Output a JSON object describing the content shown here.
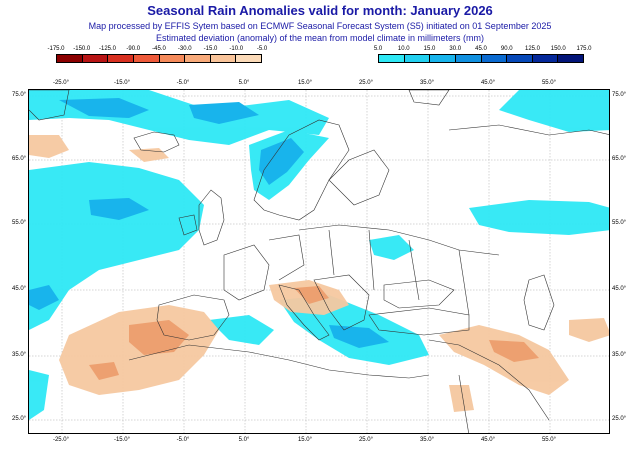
{
  "header": {
    "title": "Seasonal Rain Anomalies valid for month: January 2026",
    "subtitle_line1": "Map processed by EFFIS Sytem based on ECMWF Seasonal Forecast System (S5) initiated on 01 September 2025",
    "subtitle_line2": "Estimated deviation (anomaly) of the mean from model climate in millimeters (mm)"
  },
  "legend_dry": {
    "labels": [
      "-175.0",
      "-150.0",
      "-125.0",
      "-90.0",
      "-45.0",
      "-30.0",
      "-15.0",
      "-10.0",
      "-5.0"
    ],
    "colors": [
      "#8b0000",
      "#b81414",
      "#d83020",
      "#ee5a3a",
      "#f58a5a",
      "#f8aa7a",
      "#f9c49a",
      "#fbdab8"
    ]
  },
  "legend_wet": {
    "labels": [
      "5.0",
      "10.0",
      "15.0",
      "30.0",
      "45.0",
      "90.0",
      "125.0",
      "150.0",
      "175.0"
    ],
    "colors": [
      "#2ee8f5",
      "#22d0f0",
      "#18b4ec",
      "#1090e0",
      "#0a6ad0",
      "#0648b8",
      "#04289a",
      "#021478"
    ]
  },
  "map": {
    "lon_labels": [
      "-25.0°",
      "-15.0°",
      "-5.0°",
      "5.0°",
      "15.0°",
      "25.0°",
      "35.0°",
      "45.0°",
      "55.0°"
    ],
    "lat_labels": [
      "75.0°",
      "65.0°",
      "55.0°",
      "45.0°",
      "35.0°",
      "25.0°"
    ],
    "colors": {
      "wet_light": "#2ee8f5",
      "wet_mid": "#18b4ec",
      "dry_light": "#f5c8a0",
      "dry_mid": "#eda070",
      "border": "#333333",
      "grid": "#999999"
    }
  }
}
